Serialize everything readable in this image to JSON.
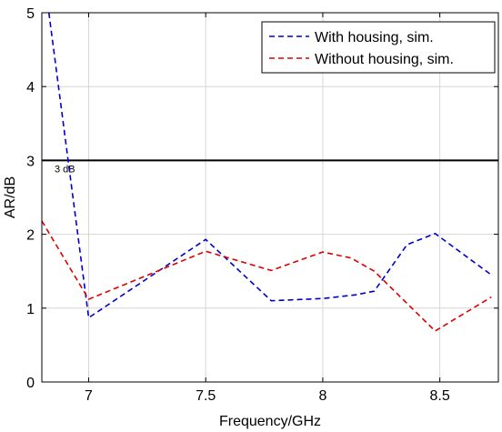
{
  "chart_data": {
    "type": "line",
    "xlabel": "Frequency/GHz",
    "ylabel": "AR/dB",
    "xlim": [
      6.8,
      8.75
    ],
    "ylim": [
      0,
      5
    ],
    "xticks": [
      7,
      7.5,
      8,
      8.5
    ],
    "xtick_labels": [
      "7",
      "7.5",
      "8",
      "8.5"
    ],
    "yticks": [
      0,
      1,
      2,
      3,
      4,
      5
    ],
    "ytick_labels": [
      "0",
      "1",
      "2",
      "3",
      "4",
      "5"
    ],
    "grid": true,
    "legend_position": "top-right",
    "series": [
      {
        "name": "With housing, sim.",
        "color": "#0000cc",
        "dash": "dashed",
        "x": [
          6.83,
          7.0,
          7.5,
          7.78,
          8.0,
          8.14,
          8.22,
          8.36,
          8.48,
          8.72
        ],
        "y": [
          5.0,
          0.87,
          1.93,
          1.1,
          1.13,
          1.18,
          1.23,
          1.86,
          2.01,
          1.45
        ]
      },
      {
        "name": "Without housing, sim.",
        "color": "#dd0000",
        "dash": "dashed",
        "x": [
          6.8,
          7.0,
          7.5,
          7.78,
          8.0,
          8.12,
          8.22,
          8.48,
          8.72
        ],
        "y": [
          2.18,
          1.12,
          1.77,
          1.51,
          1.76,
          1.68,
          1.5,
          0.69,
          1.15
        ]
      }
    ],
    "reference_line": {
      "y": 3,
      "label": "3 dB",
      "color": "#000000"
    }
  }
}
